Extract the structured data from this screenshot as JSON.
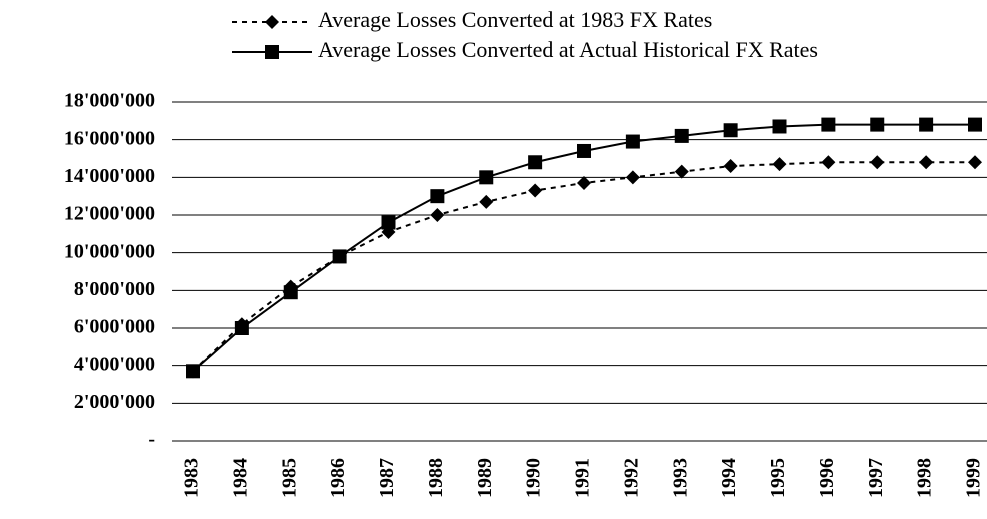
{
  "chart_data": {
    "type": "line",
    "categories": [
      "1983",
      "1984",
      "1985",
      "1986",
      "1987",
      "1988",
      "1989",
      "1990",
      "1991",
      "1992",
      "1993",
      "1994",
      "1995",
      "1996",
      "1997",
      "1998",
      "1999"
    ],
    "series": [
      {
        "name": "Average Losses Converted at 1983 FX Rates",
        "color": "#000000",
        "marker": "diamond",
        "line_style": "dashed",
        "values": [
          3700000,
          6200000,
          8200000,
          9800000,
          11100000,
          12000000,
          12700000,
          13300000,
          13700000,
          14000000,
          14300000,
          14600000,
          14700000,
          14800000,
          14800000,
          14800000,
          14800000
        ]
      },
      {
        "name": "Average Losses Converted at Actual Historical FX Rates",
        "color": "#000000",
        "marker": "square",
        "line_style": "solid",
        "values": [
          3700000,
          6000000,
          7900000,
          9800000,
          11600000,
          13000000,
          14000000,
          14800000,
          15400000,
          15900000,
          16200000,
          16500000,
          16700000,
          16800000,
          16800000,
          16800000,
          16800000
        ]
      }
    ],
    "ylim": [
      0,
      18000000
    ],
    "yticks": [
      {
        "value": 0,
        "label": "-"
      },
      {
        "value": 2000000,
        "label": "2'000'000"
      },
      {
        "value": 4000000,
        "label": "4'000'000"
      },
      {
        "value": 6000000,
        "label": "6'000'000"
      },
      {
        "value": 8000000,
        "label": "8'000'000"
      },
      {
        "value": 10000000,
        "label": "10'000'000"
      },
      {
        "value": 12000000,
        "label": "12'000'000"
      },
      {
        "value": 14000000,
        "label": "14'000'000"
      },
      {
        "value": 16000000,
        "label": "16'000'000"
      },
      {
        "value": 18000000,
        "label": "18'000'000"
      }
    ],
    "grid": true,
    "legend": "top"
  }
}
